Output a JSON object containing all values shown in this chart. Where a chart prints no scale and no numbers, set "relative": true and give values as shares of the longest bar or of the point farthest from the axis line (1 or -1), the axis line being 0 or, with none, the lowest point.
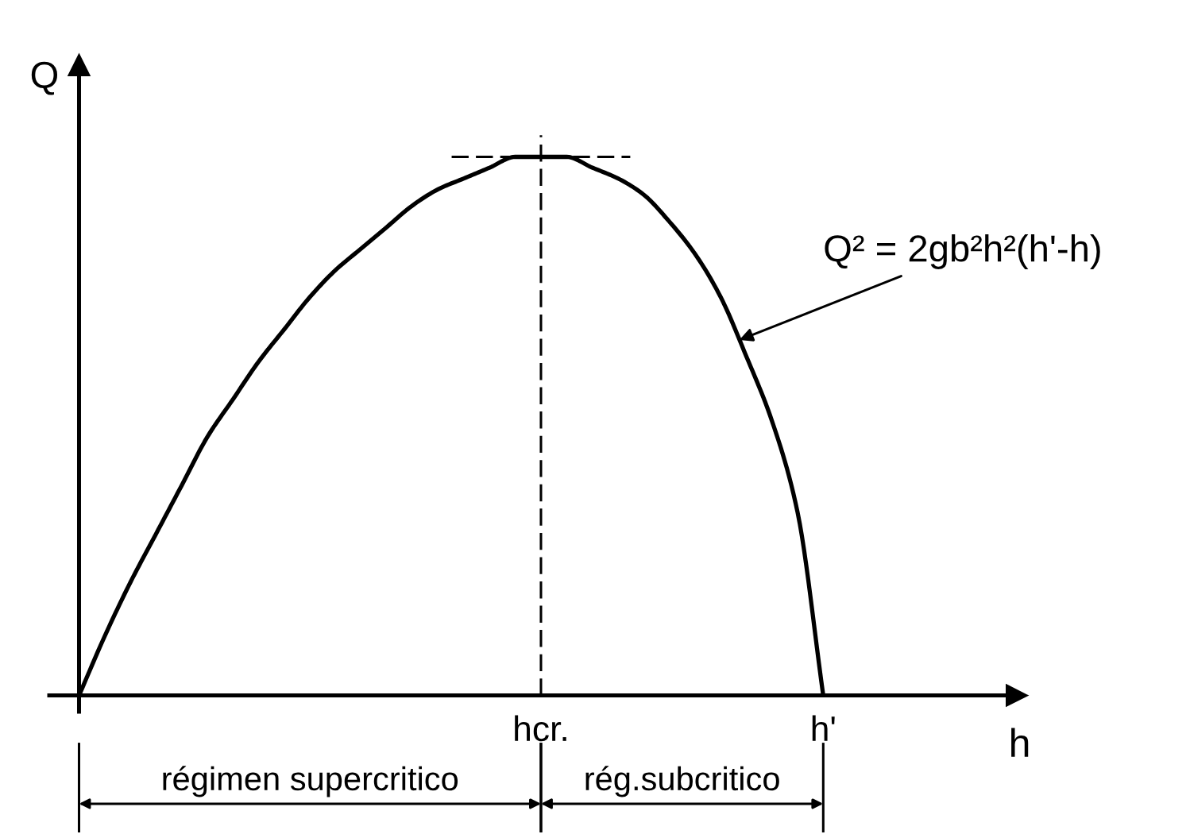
{
  "chart_data": {
    "type": "line",
    "relative": true,
    "xlabel": "h",
    "ylabel": "Q",
    "color": "#000000",
    "categories": [
      null,
      null,
      null,
      null,
      null,
      null,
      null,
      null,
      null,
      null,
      null,
      null,
      null,
      null,
      null,
      null,
      null,
      null,
      "hcr.",
      null,
      null,
      null,
      null,
      null,
      null,
      null,
      null,
      null,
      null,
      "h'"
    ],
    "values": [
      0,
      0.11,
      0.21,
      0.3,
      0.39,
      0.48,
      0.55,
      0.62,
      0.68,
      0.74,
      0.79,
      0.83,
      0.87,
      0.91,
      0.94,
      0.96,
      0.98,
      1,
      1,
      1,
      0.98,
      0.96,
      0.93,
      0.88,
      0.82,
      0.74,
      0.63,
      0.51,
      0.34,
      0
    ],
    "ref_lines": [
      {
        "axis": "x",
        "value": "hcr.",
        "line_style": "dashed"
      },
      {
        "axis": "y",
        "value": 1,
        "line_style": "dashed"
      }
    ],
    "annotations": [
      "Q² = 2gb²h²(h'-h)",
      "régimen supercritico",
      "rég.subcritico"
    ]
  }
}
